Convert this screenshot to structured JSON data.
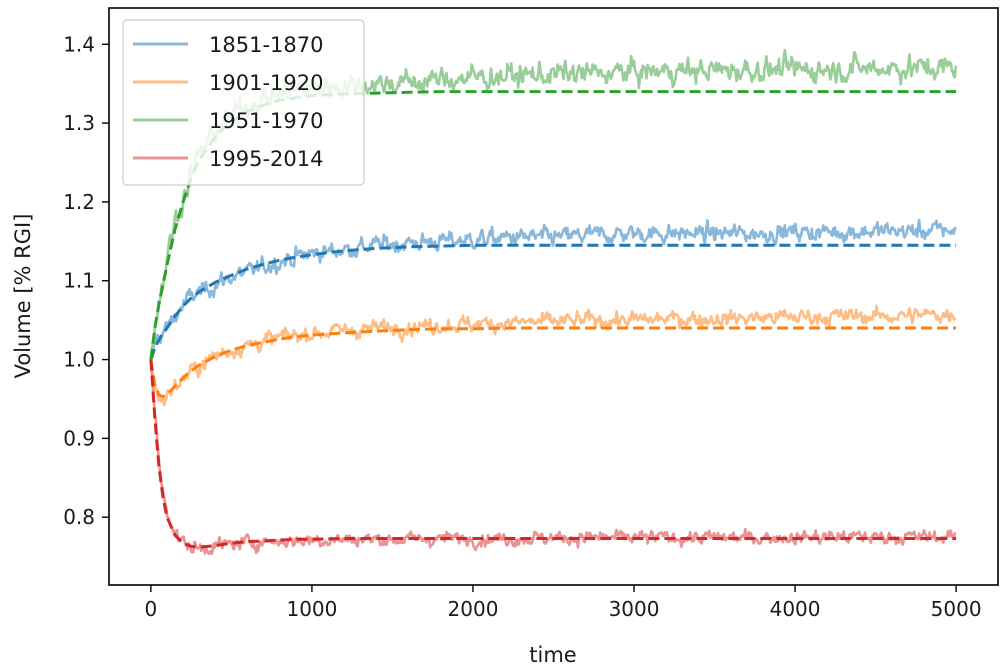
{
  "chart_data": {
    "type": "line",
    "title": "",
    "xlabel": "time",
    "ylabel": "Volume [% RGI]",
    "xlim": [
      -260,
      5260
    ],
    "ylim": [
      0.714,
      1.446
    ],
    "x_ticks": [
      0,
      1000,
      2000,
      3000,
      4000,
      5000
    ],
    "x_tick_labels": [
      "0",
      "1000",
      "2000",
      "3000",
      "4000",
      "5000"
    ],
    "y_ticks": [
      0.8,
      0.9,
      1.0,
      1.1,
      1.2,
      1.3,
      1.4
    ],
    "y_tick_labels": [
      "0.8",
      "0.9",
      "1.0",
      "1.1",
      "1.2",
      "1.3",
      "1.4"
    ],
    "grid": false,
    "legend_position": "top-left",
    "x": [
      0,
      25,
      50,
      75,
      100,
      150,
      200,
      250,
      300,
      400,
      500,
      600,
      700,
      800,
      900,
      1000,
      1200,
      1400,
      1600,
      1800,
      2000,
      2250,
      2500,
      2750,
      3000,
      3250,
      3500,
      3750,
      4000,
      4250,
      4500,
      4750,
      5000
    ],
    "series": [
      {
        "name": "1851-1870",
        "color": "#1f77b4",
        "light_color": "#8ab8db",
        "noise": 0.009,
        "raw_values": [
          1.0,
          1.02,
          1.03,
          1.035,
          1.04,
          1.055,
          1.07,
          1.08,
          1.085,
          1.095,
          1.105,
          1.11,
          1.118,
          1.125,
          1.13,
          1.135,
          1.14,
          1.145,
          1.148,
          1.15,
          1.152,
          1.155,
          1.155,
          1.158,
          1.16,
          1.16,
          1.16,
          1.16,
          1.162,
          1.162,
          1.163,
          1.163,
          1.165
        ],
        "fit_values": [
          1.0,
          1.015,
          1.025,
          1.033,
          1.04,
          1.055,
          1.068,
          1.078,
          1.086,
          1.098,
          1.107,
          1.115,
          1.121,
          1.126,
          1.13,
          1.133,
          1.138,
          1.141,
          1.143,
          1.144,
          1.145,
          1.145,
          1.145,
          1.145,
          1.145,
          1.145,
          1.145,
          1.145,
          1.145,
          1.145,
          1.145,
          1.145,
          1.145
        ]
      },
      {
        "name": "1901-1920",
        "color": "#ff7f0e",
        "light_color": "#ffbd86",
        "noise": 0.008,
        "raw_values": [
          1.0,
          0.965,
          0.952,
          0.95,
          0.955,
          0.965,
          0.975,
          0.985,
          0.992,
          1.005,
          1.012,
          1.018,
          1.023,
          1.028,
          1.031,
          1.034,
          1.037,
          1.04,
          1.042,
          1.044,
          1.045,
          1.047,
          1.048,
          1.05,
          1.05,
          1.052,
          1.052,
          1.053,
          1.054,
          1.055,
          1.055,
          1.056,
          1.058
        ],
        "fit_values": [
          1.0,
          0.968,
          0.955,
          0.953,
          0.956,
          0.966,
          0.977,
          0.986,
          0.993,
          1.004,
          1.012,
          1.018,
          1.022,
          1.026,
          1.029,
          1.031,
          1.034,
          1.036,
          1.038,
          1.039,
          1.039,
          1.04,
          1.04,
          1.04,
          1.04,
          1.04,
          1.04,
          1.04,
          1.04,
          1.04,
          1.04,
          1.04,
          1.04
        ]
      },
      {
        "name": "1951-1970",
        "color": "#2ca02c",
        "light_color": "#99cd99",
        "noise": 0.012,
        "raw_values": [
          1.0,
          1.045,
          1.075,
          1.1,
          1.13,
          1.175,
          1.205,
          1.235,
          1.26,
          1.29,
          1.31,
          1.322,
          1.332,
          1.338,
          1.342,
          1.345,
          1.348,
          1.35,
          1.352,
          1.355,
          1.358,
          1.36,
          1.362,
          1.363,
          1.365,
          1.366,
          1.367,
          1.368,
          1.368,
          1.369,
          1.37,
          1.37,
          1.37
        ],
        "fit_values": [
          1.0,
          1.04,
          1.07,
          1.095,
          1.12,
          1.165,
          1.2,
          1.23,
          1.253,
          1.283,
          1.302,
          1.315,
          1.323,
          1.329,
          1.332,
          1.335,
          1.337,
          1.338,
          1.339,
          1.34,
          1.34,
          1.34,
          1.34,
          1.34,
          1.34,
          1.34,
          1.34,
          1.34,
          1.34,
          1.34,
          1.34,
          1.34,
          1.34
        ]
      },
      {
        "name": "1995-2014",
        "color": "#d62728",
        "light_color": "#ea9394",
        "noise": 0.007,
        "raw_values": [
          1.0,
          0.93,
          0.87,
          0.83,
          0.81,
          0.78,
          0.768,
          0.762,
          0.76,
          0.764,
          0.766,
          0.768,
          0.769,
          0.77,
          0.77,
          0.771,
          0.772,
          0.772,
          0.772,
          0.773,
          0.773,
          0.773,
          0.774,
          0.774,
          0.774,
          0.774,
          0.774,
          0.774,
          0.775,
          0.775,
          0.775,
          0.775,
          0.775
        ],
        "fit_values": [
          1.0,
          0.925,
          0.865,
          0.825,
          0.8,
          0.777,
          0.767,
          0.763,
          0.762,
          0.764,
          0.767,
          0.769,
          0.77,
          0.771,
          0.772,
          0.772,
          0.773,
          0.773,
          0.773,
          0.773,
          0.773,
          0.773,
          0.773,
          0.773,
          0.773,
          0.773,
          0.773,
          0.773,
          0.773,
          0.773,
          0.773,
          0.773,
          0.773
        ]
      }
    ]
  }
}
